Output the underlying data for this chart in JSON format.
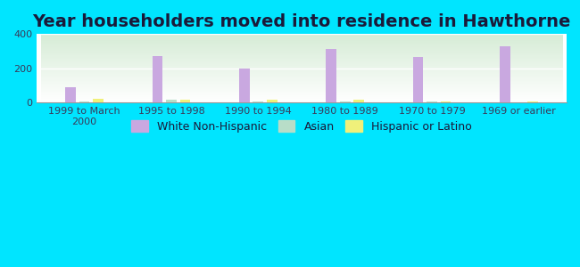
{
  "title": "Year householders moved into residence in Hawthorne",
  "categories": [
    "1999 to March\n2000",
    "1995 to 1998",
    "1990 to 1994",
    "1980 to 1989",
    "1970 to 1979",
    "1969 or earlier"
  ],
  "white_non_hispanic": [
    90,
    270,
    200,
    315,
    265,
    330
  ],
  "asian": [
    5,
    15,
    5,
    5,
    7,
    3
  ],
  "hispanic_or_latino": [
    22,
    15,
    18,
    15,
    5,
    5
  ],
  "bar_width": 0.12,
  "white_color": "#c9a8e0",
  "asian_color": "#b8ddc8",
  "hispanic_color": "#f0f07a",
  "background_color": "#00e5ff",
  "ylim": [
    0,
    400
  ],
  "yticks": [
    0,
    200,
    400
  ],
  "title_fontsize": 14,
  "tick_fontsize": 8,
  "legend_fontsize": 9
}
